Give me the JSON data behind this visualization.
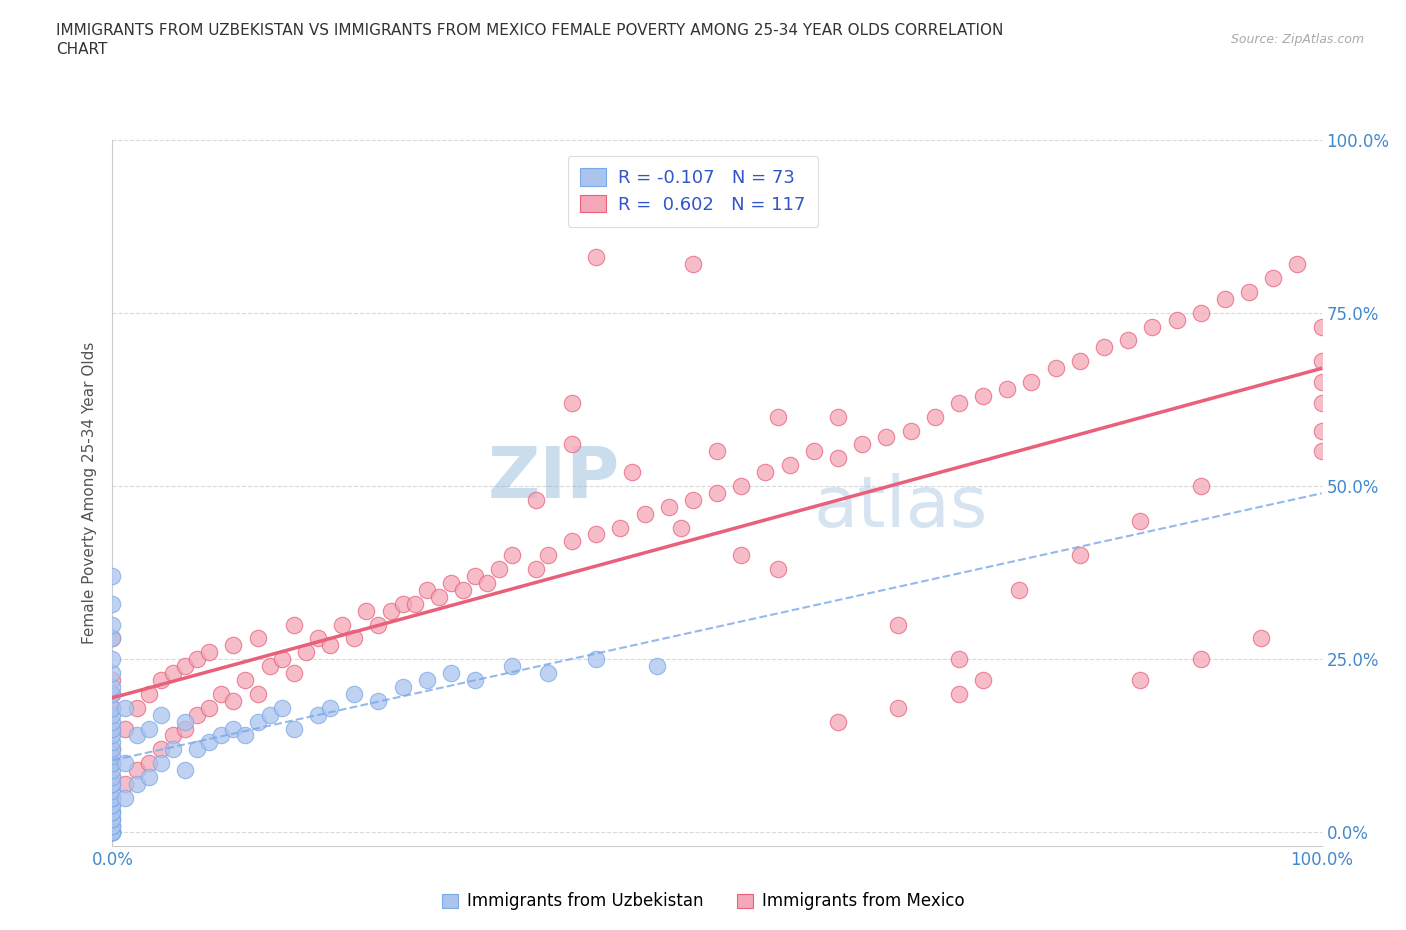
{
  "title_line1": "IMMIGRANTS FROM UZBEKISTAN VS IMMIGRANTS FROM MEXICO FEMALE POVERTY AMONG 25-34 YEAR OLDS CORRELATION",
  "title_line2": "CHART",
  "source": "Source: ZipAtlas.com",
  "ylabel": "Female Poverty Among 25-34 Year Olds",
  "r_uzbekistan": -0.107,
  "n_uzbekistan": 73,
  "r_mexico": 0.602,
  "n_mexico": 117,
  "legend_label_uzbekistan": "Immigrants from Uzbekistan",
  "legend_label_mexico": "Immigrants from Mexico",
  "uzbekistan_color": "#aac4ee",
  "mexico_color": "#f4a7b8",
  "uzbekistan_line_color": "#7aa8e8",
  "mexico_line_color": "#e8607a",
  "uzbekistan_scatter_x": [
    0.0,
    0.0,
    0.0,
    0.0,
    0.0,
    0.0,
    0.0,
    0.0,
    0.0,
    0.0,
    0.0,
    0.0,
    0.0,
    0.0,
    0.0,
    0.0,
    0.0,
    0.0,
    0.0,
    0.0,
    0.0,
    0.0,
    0.0,
    0.0,
    0.0,
    0.0,
    0.0,
    0.0,
    0.0,
    0.0,
    0.0,
    0.0,
    0.0,
    0.0,
    0.0,
    0.0,
    0.0,
    0.0,
    0.0,
    0.0,
    0.01,
    0.01,
    0.01,
    0.02,
    0.02,
    0.03,
    0.03,
    0.04,
    0.04,
    0.05,
    0.06,
    0.06,
    0.07,
    0.08,
    0.09,
    0.1,
    0.11,
    0.12,
    0.13,
    0.14,
    0.15,
    0.17,
    0.18,
    0.2,
    0.22,
    0.24,
    0.26,
    0.28,
    0.3,
    0.33,
    0.36,
    0.4,
    0.45
  ],
  "uzbekistan_scatter_y": [
    0.0,
    0.0,
    0.0,
    0.0,
    0.0,
    0.0,
    0.0,
    0.0,
    0.01,
    0.01,
    0.02,
    0.02,
    0.03,
    0.03,
    0.04,
    0.04,
    0.05,
    0.05,
    0.06,
    0.07,
    0.07,
    0.08,
    0.09,
    0.1,
    0.11,
    0.12,
    0.13,
    0.14,
    0.15,
    0.16,
    0.17,
    0.18,
    0.2,
    0.21,
    0.23,
    0.25,
    0.28,
    0.3,
    0.33,
    0.37,
    0.05,
    0.1,
    0.18,
    0.07,
    0.14,
    0.08,
    0.15,
    0.1,
    0.17,
    0.12,
    0.09,
    0.16,
    0.12,
    0.13,
    0.14,
    0.15,
    0.14,
    0.16,
    0.17,
    0.18,
    0.15,
    0.17,
    0.18,
    0.2,
    0.19,
    0.21,
    0.22,
    0.23,
    0.22,
    0.24,
    0.23,
    0.25,
    0.24
  ],
  "mexico_scatter_x": [
    0.0,
    0.0,
    0.0,
    0.0,
    0.0,
    0.0,
    0.0,
    0.0,
    0.0,
    0.01,
    0.01,
    0.02,
    0.02,
    0.03,
    0.03,
    0.04,
    0.04,
    0.05,
    0.05,
    0.06,
    0.06,
    0.07,
    0.07,
    0.08,
    0.08,
    0.09,
    0.1,
    0.1,
    0.11,
    0.12,
    0.12,
    0.13,
    0.14,
    0.15,
    0.15,
    0.16,
    0.17,
    0.18,
    0.19,
    0.2,
    0.21,
    0.22,
    0.23,
    0.24,
    0.25,
    0.26,
    0.27,
    0.28,
    0.29,
    0.3,
    0.31,
    0.32,
    0.33,
    0.35,
    0.36,
    0.38,
    0.4,
    0.42,
    0.44,
    0.46,
    0.48,
    0.5,
    0.52,
    0.54,
    0.56,
    0.58,
    0.6,
    0.62,
    0.64,
    0.66,
    0.68,
    0.7,
    0.72,
    0.74,
    0.76,
    0.78,
    0.8,
    0.82,
    0.84,
    0.86,
    0.88,
    0.9,
    0.92,
    0.94,
    0.96,
    0.98,
    1.0,
    1.0,
    1.0,
    1.0,
    1.0,
    1.0,
    0.47,
    0.52,
    0.55,
    0.43,
    0.38,
    0.6,
    0.65,
    0.7,
    0.72,
    0.75,
    0.8,
    0.85,
    0.9,
    0.6,
    0.65,
    0.7,
    0.85,
    0.9,
    0.95,
    0.5,
    0.55,
    0.48,
    0.4,
    0.38,
    0.35
  ],
  "mexico_scatter_y": [
    0.05,
    0.08,
    0.1,
    0.12,
    0.15,
    0.18,
    0.2,
    0.22,
    0.28,
    0.07,
    0.15,
    0.09,
    0.18,
    0.1,
    0.2,
    0.12,
    0.22,
    0.14,
    0.23,
    0.15,
    0.24,
    0.17,
    0.25,
    0.18,
    0.26,
    0.2,
    0.19,
    0.27,
    0.22,
    0.2,
    0.28,
    0.24,
    0.25,
    0.23,
    0.3,
    0.26,
    0.28,
    0.27,
    0.3,
    0.28,
    0.32,
    0.3,
    0.32,
    0.33,
    0.33,
    0.35,
    0.34,
    0.36,
    0.35,
    0.37,
    0.36,
    0.38,
    0.4,
    0.38,
    0.4,
    0.42,
    0.43,
    0.44,
    0.46,
    0.47,
    0.48,
    0.49,
    0.5,
    0.52,
    0.53,
    0.55,
    0.54,
    0.56,
    0.57,
    0.58,
    0.6,
    0.62,
    0.63,
    0.64,
    0.65,
    0.67,
    0.68,
    0.7,
    0.71,
    0.73,
    0.74,
    0.75,
    0.77,
    0.78,
    0.8,
    0.82,
    0.73,
    0.68,
    0.65,
    0.62,
    0.58,
    0.55,
    0.44,
    0.4,
    0.38,
    0.52,
    0.62,
    0.6,
    0.3,
    0.25,
    0.22,
    0.35,
    0.4,
    0.45,
    0.5,
    0.16,
    0.18,
    0.2,
    0.22,
    0.25,
    0.28,
    0.55,
    0.6,
    0.82,
    0.83,
    0.56,
    0.48
  ],
  "xlim": [
    0.0,
    1.0
  ],
  "ylim": [
    -0.02,
    1.0
  ],
  "ytick_positions": [
    0.0,
    0.25,
    0.5,
    0.75,
    1.0
  ],
  "ytick_labels": [
    "0.0%",
    "25.0%",
    "50.0%",
    "75.0%",
    "100.0%"
  ],
  "xtick_positions": [
    0.0,
    1.0
  ],
  "xtick_labels": [
    "0.0%",
    "100.0%"
  ],
  "background_color": "#ffffff",
  "grid_color": "#d0d0d0",
  "watermark_color": "#ccd8e8",
  "title_color": "#333333",
  "label_color": "#4488cc",
  "text_color": "#555555"
}
